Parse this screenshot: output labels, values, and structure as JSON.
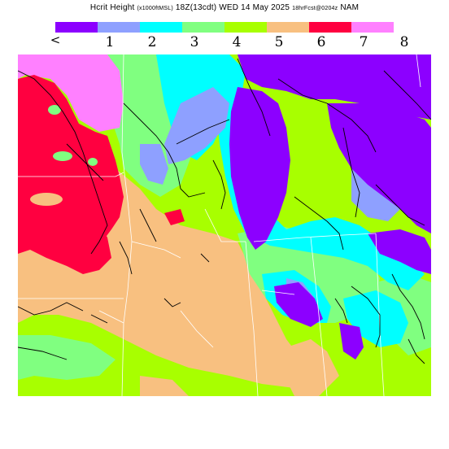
{
  "title": {
    "field": "Hcrit Height",
    "units": "(x1000ftMSL)",
    "valid": "18Z(13cdt) WED 14 May 2025",
    "forecast": "18hrFcst@0204z",
    "model": "NAM"
  },
  "legend": {
    "labels": [
      "<",
      "1",
      "2",
      "3",
      "4",
      "5",
      "6",
      "7",
      "8"
    ],
    "colors": [
      "#8c00ff",
      "#8ea0ff",
      "#00ffff",
      "#80ff80",
      "#a8ff00",
      "#f8c080",
      "#ff0040",
      "#ff80ff"
    ]
  },
  "map": {
    "colors": {
      "violet": "#8c00ff",
      "blue": "#8ea0ff",
      "cyan": "#00ffff",
      "green": "#80ff80",
      "lime": "#a8ff00",
      "tan": "#f8c080",
      "red": "#ff0040",
      "pink": "#ff80ff"
    }
  }
}
